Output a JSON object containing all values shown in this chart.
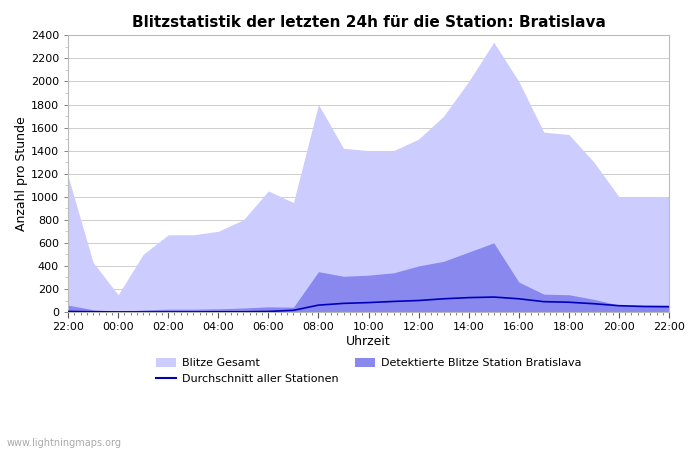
{
  "title": "Blitzstatistik der letzten 24h für die Station: Bratislava",
  "xlabel": "Uhrzeit",
  "ylabel": "Anzahl pro Stunde",
  "ylim": [
    0,
    2400
  ],
  "yticks": [
    0,
    200,
    400,
    600,
    800,
    1000,
    1200,
    1400,
    1600,
    1800,
    2000,
    2200,
    2400
  ],
  "xtick_labels": [
    "22:00",
    "00:00",
    "02:00",
    "04:00",
    "06:00",
    "08:00",
    "10:00",
    "12:00",
    "14:00",
    "16:00",
    "18:00",
    "20:00",
    "22:00"
  ],
  "color_gesamt": "#ccccff",
  "color_detektiert": "#8888ee",
  "color_durchschnitt": "#0000bb",
  "watermark": "www.lightningmaps.org",
  "legend_gesamt": "Blitze Gesamt",
  "legend_detektiert": "Detektierte Blitze Station Bratislava",
  "legend_durchschnitt": "Durchschnitt aller Stationen",
  "x_hours": [
    0,
    1,
    2,
    3,
    4,
    5,
    6,
    7,
    8,
    9,
    10,
    11,
    12,
    13,
    14,
    15,
    16,
    17,
    18,
    19,
    20,
    21,
    22,
    23,
    24
  ],
  "gesamt": [
    1180,
    430,
    150,
    500,
    670,
    670,
    700,
    800,
    1050,
    950,
    1800,
    1420,
    1400,
    1400,
    1500,
    1700,
    2000,
    2340,
    2000,
    1560,
    1540,
    1300,
    1000,
    1000,
    1000
  ],
  "detektiert": [
    60,
    20,
    5,
    18,
    25,
    25,
    28,
    35,
    45,
    42,
    350,
    310,
    320,
    340,
    400,
    440,
    520,
    600,
    260,
    155,
    150,
    110,
    60,
    60,
    60
  ],
  "durchschnitt": [
    5,
    2,
    1,
    1,
    1,
    1,
    2,
    2,
    5,
    15,
    60,
    75,
    82,
    92,
    100,
    115,
    125,
    130,
    115,
    90,
    85,
    72,
    55,
    48,
    46
  ]
}
